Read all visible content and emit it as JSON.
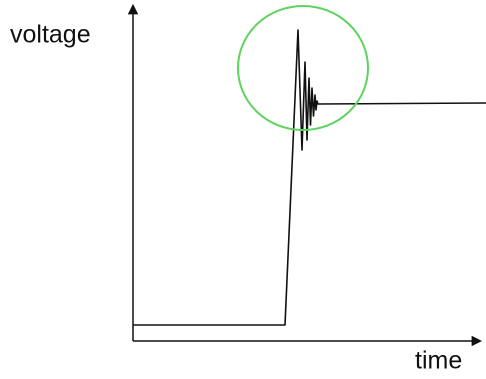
{
  "axes": {
    "y_label": "voltage",
    "x_label": "time"
  }
}
